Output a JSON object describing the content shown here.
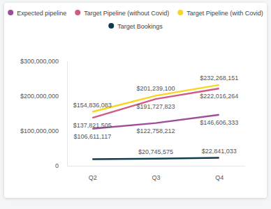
{
  "chart_data": {
    "type": "line",
    "categories": [
      "Q2",
      "Q3",
      "Q4"
    ],
    "series": [
      {
        "name": "Expected pipeline",
        "color": "#9d4e9b",
        "values": [
          106611117,
          122758212,
          146606333
        ],
        "value_labels": [
          "$106,611,117",
          "$122,758,212",
          "$146,606,333"
        ]
      },
      {
        "name": "Target Pipeline (without Covid)",
        "color": "#cf5a88",
        "values": [
          137821505,
          191727823,
          222016264
        ],
        "value_labels": [
          "$137,821,505",
          "$191,727,823",
          "$222,016,264"
        ]
      },
      {
        "name": "Target Pipeline (with Covid)",
        "color": "#f8d51e",
        "values": [
          154836083,
          201239100,
          232268151
        ],
        "value_labels": [
          "$154,836,083",
          "$201,239,100",
          "$232,268,151"
        ]
      },
      {
        "name": "Target Bookings",
        "color": "#0e3b52",
        "values": [
          19000000,
          20745575,
          22841033
        ],
        "value_labels": [
          null,
          "$20,745,575",
          "$22,841,033"
        ]
      }
    ],
    "ylim": [
      0,
      300000000
    ],
    "yticks": [
      0,
      {
        "value": 100000000,
        "label": "$100,000,000"
      },
      {
        "value": 200000000,
        "label": "$200,000,000"
      },
      {
        "value": 300000000,
        "label": "$300,000,000"
      }
    ],
    "legend": "top",
    "data_labels": true,
    "grid": false
  }
}
